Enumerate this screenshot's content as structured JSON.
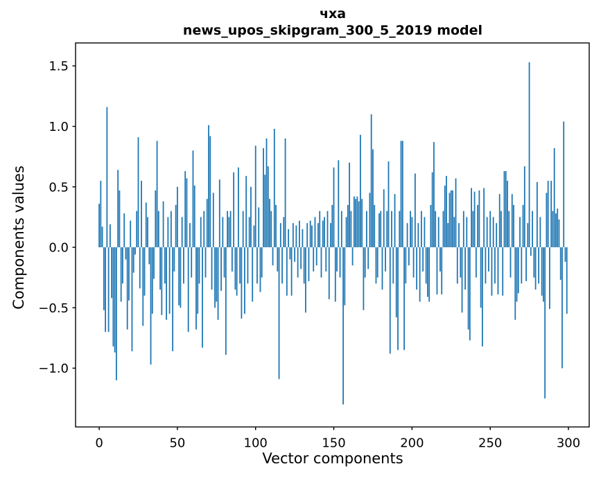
{
  "figure": {
    "title_line1": "чха",
    "title_line2": "news_upos_skipgram_300_5_2019 model",
    "background": "#ffffff"
  },
  "chart_data": {
    "type": "bar",
    "title": "чха",
    "subtitle": "news_upos_skipgram_300_5_2019 model",
    "xlabel": "Vector components",
    "ylabel": "Components values",
    "bar_color": "#1f77b4",
    "axis_color": "#000000",
    "text_color": "#000000",
    "grid": false,
    "legend_position": "none",
    "bar_width_data_units": 0.8,
    "xlim": [
      -15.1,
      313.3
    ],
    "ylim": [
      -1.486,
      1.69
    ],
    "x_ticks": [
      0,
      50,
      100,
      150,
      200,
      250,
      300
    ],
    "y_ticks": [
      -1.0,
      -0.5,
      0.0,
      0.5,
      1.0,
      1.5
    ],
    "y_tick_labels": [
      "−1.0",
      "−0.5",
      "0.0",
      "0.5",
      "1.0",
      "1.5"
    ],
    "x_description": "vector component index 0–299",
    "values": [
      0.36,
      0.55,
      0.17,
      -0.52,
      -0.7,
      1.16,
      -0.7,
      0.19,
      -0.42,
      -0.82,
      -0.87,
      -1.1,
      0.64,
      0.47,
      -0.45,
      -0.3,
      0.28,
      -0.1,
      -0.68,
      -0.44,
      0.22,
      -0.86,
      -0.21,
      -0.06,
      0.3,
      0.91,
      -0.34,
      0.55,
      -0.65,
      -0.4,
      0.37,
      0.25,
      -0.14,
      -0.97,
      -0.55,
      -0.26,
      0.47,
      0.88,
      0.3,
      -0.35,
      -0.56,
      0.38,
      -0.3,
      -0.6,
      0.25,
      -0.55,
      0.3,
      -0.86,
      -0.2,
      0.35,
      0.5,
      -0.48,
      -0.5,
      0.25,
      -0.3,
      0.63,
      0.57,
      -0.7,
      0.2,
      -0.25,
      0.8,
      0.51,
      -0.68,
      -0.55,
      -0.3,
      0.25,
      -0.83,
      0.3,
      -0.25,
      0.4,
      1.01,
      0.92,
      -0.35,
      0.45,
      -0.5,
      -0.45,
      -0.6,
      0.56,
      -0.36,
      0.25,
      -0.25,
      -0.89,
      0.3,
      0.25,
      0.3,
      -0.2,
      0.62,
      -0.35,
      -0.4,
      0.66,
      -0.3,
      -0.59,
      0.3,
      -0.55,
      0.59,
      -0.3,
      0.25,
      0.5,
      -0.45,
      0.18,
      0.84,
      -0.3,
      0.33,
      -0.37,
      -0.25,
      0.82,
      0.6,
      0.9,
      0.67,
      0.4,
      0.3,
      -0.15,
      0.98,
      0.35,
      -0.2,
      -1.09,
      0.2,
      -0.3,
      0.25,
      0.9,
      -0.4,
      0.15,
      -0.1,
      -0.4,
      0.2,
      -0.12,
      0.18,
      -0.25,
      0.22,
      -0.18,
      0.15,
      -0.3,
      -0.54,
      0.2,
      -0.28,
      0.22,
      0.18,
      -0.2,
      0.25,
      -0.15,
      0.2,
      0.3,
      -0.25,
      0.22,
      0.25,
      -0.2,
      0.3,
      -0.43,
      0.2,
      0.35,
      0.66,
      -0.45,
      -0.2,
      0.72,
      -0.25,
      0.3,
      -1.3,
      -0.48,
      0.25,
      0.35,
      0.7,
      0.3,
      -0.15,
      0.42,
      0.4,
      0.42,
      0.38,
      0.93,
      0.4,
      -0.52,
      -0.25,
      0.3,
      -0.18,
      0.45,
      1.1,
      0.81,
      0.35,
      -0.3,
      -0.25,
      0.28,
      0.3,
      -0.35,
      0.48,
      -0.2,
      0.3,
      0.71,
      -0.88,
      0.3,
      -0.3,
      0.44,
      -0.58,
      -0.85,
      0.3,
      0.88,
      0.88,
      -0.85,
      -0.3,
      0.2,
      -0.15,
      0.3,
      0.25,
      -0.25,
      0.61,
      -0.35,
      0.2,
      -0.45,
      0.3,
      -0.2,
      0.25,
      -0.3,
      -0.41,
      -0.45,
      0.35,
      0.62,
      0.87,
      0.3,
      -0.39,
      0.25,
      -0.2,
      -0.39,
      0.3,
      0.51,
      0.59,
      0.2,
      0.45,
      0.47,
      0.47,
      0.25,
      0.57,
      -0.3,
      0.2,
      -0.25,
      -0.54,
      0.3,
      -0.35,
      0.25,
      -0.68,
      -0.77,
      0.49,
      0.3,
      0.46,
      -0.25,
      0.35,
      0.47,
      -0.5,
      -0.82,
      0.49,
      -0.3,
      0.25,
      -0.2,
      0.3,
      -0.4,
      0.25,
      -0.3,
      0.2,
      -0.39,
      0.44,
      0.3,
      -0.4,
      0.63,
      0.63,
      0.55,
      0.3,
      -0.25,
      0.44,
      0.35,
      -0.6,
      -0.45,
      -0.38,
      0.25,
      -0.3,
      0.35,
      0.67,
      -0.28,
      0.2,
      1.53,
      -0.07,
      0.3,
      -0.25,
      -0.35,
      0.54,
      -0.3,
      0.25,
      -0.4,
      -0.45,
      -1.25,
      0.45,
      0.55,
      -0.51,
      0.55,
      0.3,
      0.82,
      0.28,
      0.32,
      0.23,
      -0.27,
      -1.0,
      1.04,
      -0.12,
      -0.55
    ]
  }
}
